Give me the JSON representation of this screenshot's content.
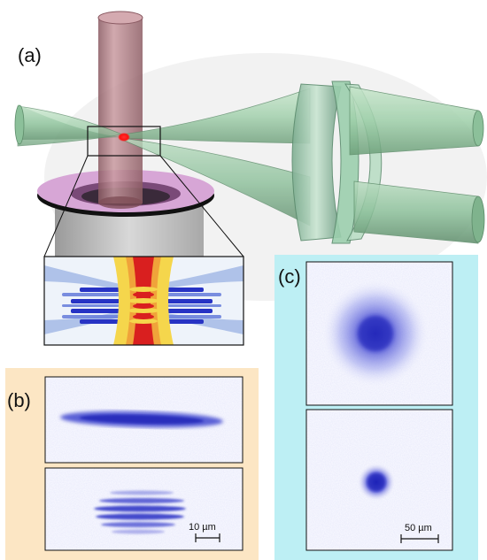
{
  "figure": {
    "panel_a": {
      "label": "(a)"
    },
    "panel_b": {
      "label": "(b)",
      "scale_bar": "10 µm",
      "background_color": "#FCE6C4"
    },
    "panel_c": {
      "label": "(c)",
      "scale_bar": "50 µm",
      "background_color": "#BDEFF4"
    },
    "colors": {
      "laser_beam": "#9ECFA9",
      "vertical_beam": "#B07A80",
      "atom_cloud": "#FF1010",
      "imaging_blue": "#2B2FC8",
      "mirror_ring": "#D7A6D6"
    }
  }
}
